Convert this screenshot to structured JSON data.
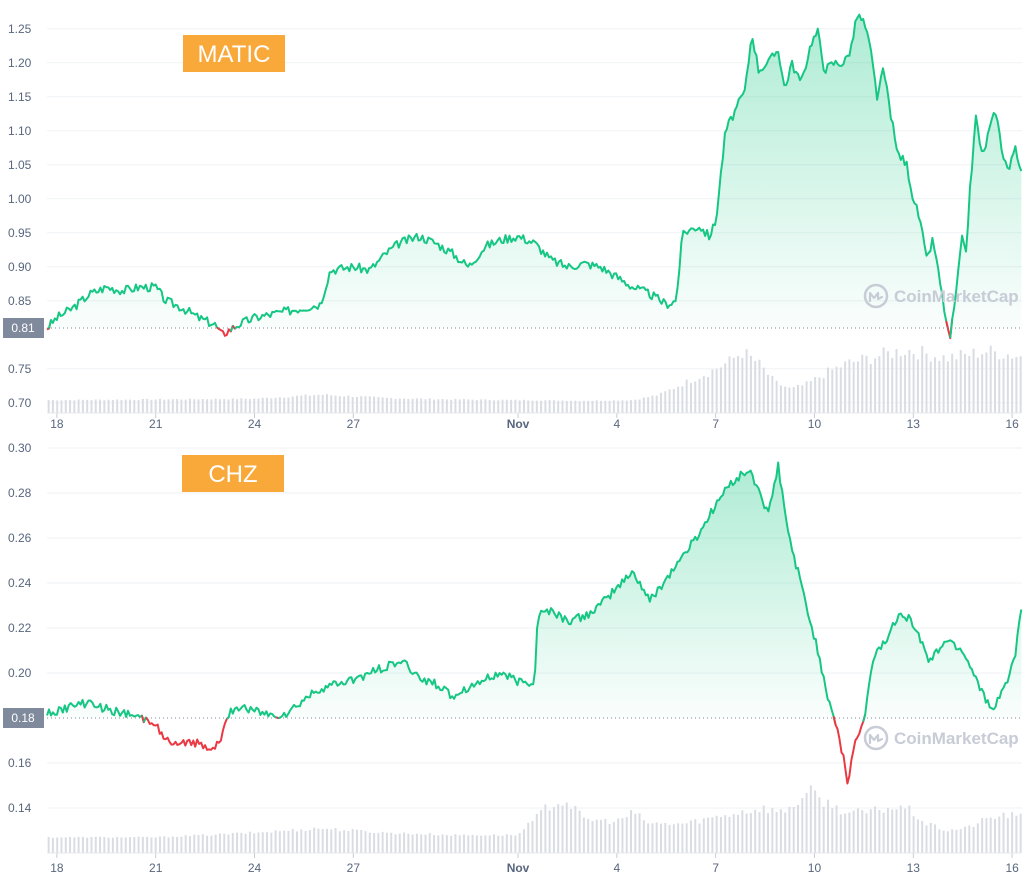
{
  "colors": {
    "up": "#16c784",
    "down": "#ea3943",
    "fill_top": "#16c784",
    "label_bg": "#f8a93a",
    "grid": "#eff2f5",
    "volume": "#d9dde3",
    "baseline_tag": "#808a9d",
    "watermark": "#c7ccd6"
  },
  "watermark": {
    "text": "CoinMarketCap"
  },
  "chart_data": [
    {
      "type": "line",
      "title": "MATIC",
      "x_tick_labels": [
        "18",
        "21",
        "24",
        "27",
        "Nov",
        "4",
        "7",
        "10",
        "13",
        "16"
      ],
      "x_tick_days": [
        0,
        3,
        6,
        9,
        14,
        17,
        20,
        23,
        26,
        29
      ],
      "x_range_days": [
        -0.3,
        29.3
      ],
      "y_ticks": [
        0.7,
        0.75,
        0.85,
        0.9,
        0.95,
        1.0,
        1.05,
        1.1,
        1.15,
        1.2,
        1.25
      ],
      "ylim": [
        0.685,
        1.285
      ],
      "baseline": 0.81,
      "baseline_label": "0.81",
      "price": [
        [
          -0.3,
          0.81
        ],
        [
          0.0,
          0.825
        ],
        [
          0.5,
          0.84
        ],
        [
          1.0,
          0.86
        ],
        [
          1.5,
          0.87
        ],
        [
          2.0,
          0.865
        ],
        [
          2.5,
          0.87
        ],
        [
          3.0,
          0.87
        ],
        [
          3.3,
          0.85
        ],
        [
          3.8,
          0.84
        ],
        [
          4.3,
          0.825
        ],
        [
          4.8,
          0.815
        ],
        [
          5.0,
          0.8
        ],
        [
          5.5,
          0.815
        ],
        [
          6.0,
          0.825
        ],
        [
          6.5,
          0.83
        ],
        [
          7.0,
          0.835
        ],
        [
          7.5,
          0.84
        ],
        [
          8.0,
          0.845
        ],
        [
          8.3,
          0.895
        ],
        [
          9.0,
          0.9
        ],
        [
          9.5,
          0.895
        ],
        [
          10.0,
          0.92
        ],
        [
          10.4,
          0.935
        ],
        [
          11.0,
          0.945
        ],
        [
          11.5,
          0.935
        ],
        [
          12.0,
          0.92
        ],
        [
          12.5,
          0.9
        ],
        [
          13.0,
          0.93
        ],
        [
          13.5,
          0.94
        ],
        [
          14.0,
          0.945
        ],
        [
          14.5,
          0.935
        ],
        [
          15.0,
          0.91
        ],
        [
          15.5,
          0.9
        ],
        [
          16.0,
          0.905
        ],
        [
          16.5,
          0.9
        ],
        [
          17.0,
          0.885
        ],
        [
          17.5,
          0.87
        ],
        [
          18.0,
          0.86
        ],
        [
          18.5,
          0.845
        ],
        [
          18.8,
          0.85
        ],
        [
          19.0,
          0.95
        ],
        [
          19.5,
          0.96
        ],
        [
          19.8,
          0.945
        ],
        [
          20.0,
          0.965
        ],
        [
          20.3,
          1.1
        ],
        [
          20.6,
          1.13
        ],
        [
          20.9,
          1.16
        ],
        [
          21.1,
          1.245
        ],
        [
          21.3,
          1.19
        ],
        [
          21.6,
          1.2
        ],
        [
          21.9,
          1.22
        ],
        [
          22.1,
          1.16
        ],
        [
          22.3,
          1.2
        ],
        [
          22.6,
          1.17
        ],
        [
          22.9,
          1.23
        ],
        [
          23.1,
          1.245
        ],
        [
          23.3,
          1.19
        ],
        [
          23.6,
          1.2
        ],
        [
          23.9,
          1.2
        ],
        [
          24.1,
          1.22
        ],
        [
          24.3,
          1.27
        ],
        [
          24.5,
          1.26
        ],
        [
          24.7,
          1.22
        ],
        [
          24.9,
          1.15
        ],
        [
          25.1,
          1.19
        ],
        [
          25.3,
          1.13
        ],
        [
          25.5,
          1.07
        ],
        [
          25.8,
          1.05
        ],
        [
          26.0,
          1.0
        ],
        [
          26.2,
          0.97
        ],
        [
          26.4,
          0.91
        ],
        [
          26.6,
          0.94
        ],
        [
          26.8,
          0.88
        ],
        [
          27.0,
          0.82
        ],
        [
          27.1,
          0.79
        ],
        [
          27.3,
          0.86
        ],
        [
          27.5,
          0.95
        ],
        [
          27.6,
          0.92
        ],
        [
          27.7,
          1.0
        ],
        [
          27.9,
          1.12
        ],
        [
          28.1,
          1.06
        ],
        [
          28.3,
          1.1
        ],
        [
          28.5,
          1.13
        ],
        [
          28.7,
          1.07
        ],
        [
          28.9,
          1.04
        ],
        [
          29.1,
          1.08
        ],
        [
          29.3,
          1.03
        ]
      ],
      "volume": [
        [
          0,
          0.704
        ],
        [
          3,
          0.705
        ],
        [
          6,
          0.706
        ],
        [
          8,
          0.712
        ],
        [
          10,
          0.707
        ],
        [
          12,
          0.705
        ],
        [
          14,
          0.704
        ],
        [
          16,
          0.703
        ],
        [
          17.5,
          0.704
        ],
        [
          18.3,
          0.712
        ],
        [
          19.0,
          0.728
        ],
        [
          19.8,
          0.745
        ],
        [
          20.4,
          0.76
        ],
        [
          20.8,
          0.775
        ],
        [
          21.3,
          0.758
        ],
        [
          21.8,
          0.73
        ],
        [
          22.3,
          0.72
        ],
        [
          22.8,
          0.728
        ],
        [
          23.4,
          0.745
        ],
        [
          24.0,
          0.758
        ],
        [
          24.6,
          0.765
        ],
        [
          25.2,
          0.772
        ],
        [
          25.8,
          0.778
        ],
        [
          26.4,
          0.772
        ],
        [
          27.0,
          0.766
        ],
        [
          27.6,
          0.77
        ],
        [
          28.2,
          0.776
        ],
        [
          28.8,
          0.772
        ],
        [
          29.3,
          0.768
        ]
      ]
    },
    {
      "type": "line",
      "title": "CHZ",
      "x_tick_labels": [
        "18",
        "21",
        "24",
        "27",
        "Nov",
        "4",
        "7",
        "10",
        "13",
        "16"
      ],
      "x_tick_days": [
        0,
        3,
        6,
        9,
        14,
        17,
        20,
        23,
        26,
        29
      ],
      "x_range_days": [
        -0.3,
        29.3
      ],
      "y_ticks": [
        0.14,
        0.16,
        0.2,
        0.22,
        0.24,
        0.26,
        0.28,
        0.3
      ],
      "ylim": [
        0.12,
        0.3
      ],
      "baseline": 0.18,
      "baseline_label": "0.18",
      "price": [
        [
          -0.3,
          0.182
        ],
        [
          0.5,
          0.185
        ],
        [
          1.0,
          0.187
        ],
        [
          1.5,
          0.184
        ],
        [
          2.0,
          0.182
        ],
        [
          2.5,
          0.18
        ],
        [
          3.0,
          0.178
        ],
        [
          3.3,
          0.17
        ],
        [
          3.7,
          0.167
        ],
        [
          4.0,
          0.17
        ],
        [
          4.4,
          0.168
        ],
        [
          4.8,
          0.167
        ],
        [
          5.0,
          0.172
        ],
        [
          5.3,
          0.183
        ],
        [
          5.7,
          0.185
        ],
        [
          6.0,
          0.183
        ],
        [
          6.5,
          0.181
        ],
        [
          7.0,
          0.182
        ],
        [
          7.5,
          0.188
        ],
        [
          8.0,
          0.193
        ],
        [
          8.5,
          0.195
        ],
        [
          9.0,
          0.197
        ],
        [
          9.5,
          0.2
        ],
        [
          10.0,
          0.203
        ],
        [
          10.5,
          0.205
        ],
        [
          11.0,
          0.198
        ],
        [
          11.5,
          0.195
        ],
        [
          12.0,
          0.19
        ],
        [
          12.5,
          0.194
        ],
        [
          13.0,
          0.197
        ],
        [
          13.5,
          0.2
        ],
        [
          14.0,
          0.196
        ],
        [
          14.5,
          0.196
        ],
        [
          14.6,
          0.226
        ],
        [
          15.0,
          0.228
        ],
        [
          15.5,
          0.223
        ],
        [
          16.0,
          0.225
        ],
        [
          16.5,
          0.23
        ],
        [
          17.0,
          0.238
        ],
        [
          17.5,
          0.245
        ],
        [
          18.0,
          0.232
        ],
        [
          18.5,
          0.242
        ],
        [
          19.0,
          0.252
        ],
        [
          19.5,
          0.262
        ],
        [
          20.0,
          0.275
        ],
        [
          20.5,
          0.285
        ],
        [
          21.0,
          0.29
        ],
        [
          21.3,
          0.282
        ],
        [
          21.6,
          0.27
        ],
        [
          21.9,
          0.292
        ],
        [
          22.2,
          0.262
        ],
        [
          22.5,
          0.245
        ],
        [
          22.8,
          0.227
        ],
        [
          23.1,
          0.21
        ],
        [
          23.4,
          0.19
        ],
        [
          23.7,
          0.175
        ],
        [
          23.9,
          0.16
        ],
        [
          24.0,
          0.15
        ],
        [
          24.2,
          0.168
        ],
        [
          24.5,
          0.178
        ],
        [
          24.8,
          0.208
        ],
        [
          25.2,
          0.215
        ],
        [
          25.6,
          0.228
        ],
        [
          26.0,
          0.222
        ],
        [
          26.5,
          0.205
        ],
        [
          27.0,
          0.215
        ],
        [
          27.5,
          0.21
        ],
        [
          28.0,
          0.195
        ],
        [
          28.4,
          0.182
        ],
        [
          28.8,
          0.195
        ],
        [
          29.1,
          0.208
        ],
        [
          29.3,
          0.231
        ]
      ],
      "volume": [
        [
          0,
          0.127
        ],
        [
          3,
          0.127
        ],
        [
          6,
          0.129
        ],
        [
          8,
          0.131
        ],
        [
          10,
          0.129
        ],
        [
          12,
          0.128
        ],
        [
          14,
          0.128
        ],
        [
          14.5,
          0.135
        ],
        [
          15.0,
          0.142
        ],
        [
          15.5,
          0.143
        ],
        [
          16.0,
          0.135
        ],
        [
          17.0,
          0.134
        ],
        [
          17.5,
          0.138
        ],
        [
          18.0,
          0.133
        ],
        [
          19.0,
          0.133
        ],
        [
          20.0,
          0.136
        ],
        [
          21.0,
          0.139
        ],
        [
          21.5,
          0.14
        ],
        [
          22.0,
          0.138
        ],
        [
          22.4,
          0.142
        ],
        [
          22.9,
          0.147
        ],
        [
          23.4,
          0.142
        ],
        [
          24.0,
          0.138
        ],
        [
          24.6,
          0.138
        ],
        [
          25.2,
          0.14
        ],
        [
          25.8,
          0.14
        ],
        [
          26.4,
          0.133
        ],
        [
          27.0,
          0.13
        ],
        [
          27.6,
          0.131
        ],
        [
          28.2,
          0.135
        ],
        [
          28.8,
          0.137
        ],
        [
          29.3,
          0.136
        ]
      ]
    }
  ]
}
